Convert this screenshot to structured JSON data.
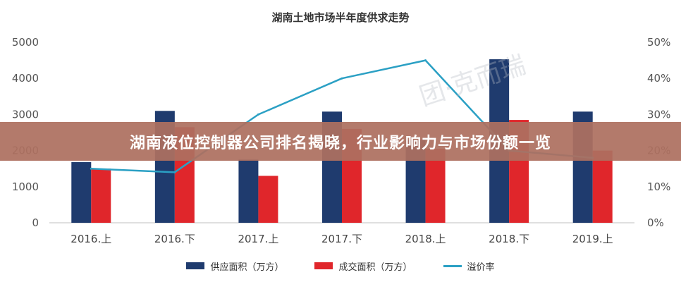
{
  "banner": {
    "text": "湖南液位控制器公司排名揭晓，行业影响力与市场份额一览"
  },
  "chart_data": {
    "type": "bar",
    "title": "湖南土地市场半年度供求走势",
    "categories": [
      "2016.上",
      "2016.下",
      "2017.上",
      "2017.下",
      "2018.上",
      "2018.下",
      "2019.上"
    ],
    "series": [
      {
        "name": "供应面积（万方）",
        "type": "bar",
        "axis": "left",
        "color": "#1f3b6e",
        "values": [
          1680,
          3100,
          1750,
          3080,
          2300,
          4530,
          3080
        ]
      },
      {
        "name": "成交面积（万方）",
        "type": "bar",
        "axis": "left",
        "color": "#e0262b",
        "values": [
          1500,
          2650,
          1300,
          2600,
          2050,
          2850,
          2000
        ]
      },
      {
        "name": "溢价率",
        "type": "line",
        "axis": "right",
        "color": "#2ba0c4",
        "values": [
          15,
          14,
          30,
          40,
          45,
          20,
          18
        ]
      }
    ],
    "ylim": [
      0,
      5000
    ],
    "yticks": [
      "0",
      "1000",
      "2000",
      "3000",
      "4000",
      "5000"
    ],
    "y2lim": [
      0,
      50
    ],
    "y2ticks": [
      "0%",
      "10%",
      "20%",
      "30%",
      "40%",
      "50%"
    ],
    "grid": false,
    "legend_position": "bottom"
  },
  "watermark": {
    "text": "团·克而瑞"
  }
}
